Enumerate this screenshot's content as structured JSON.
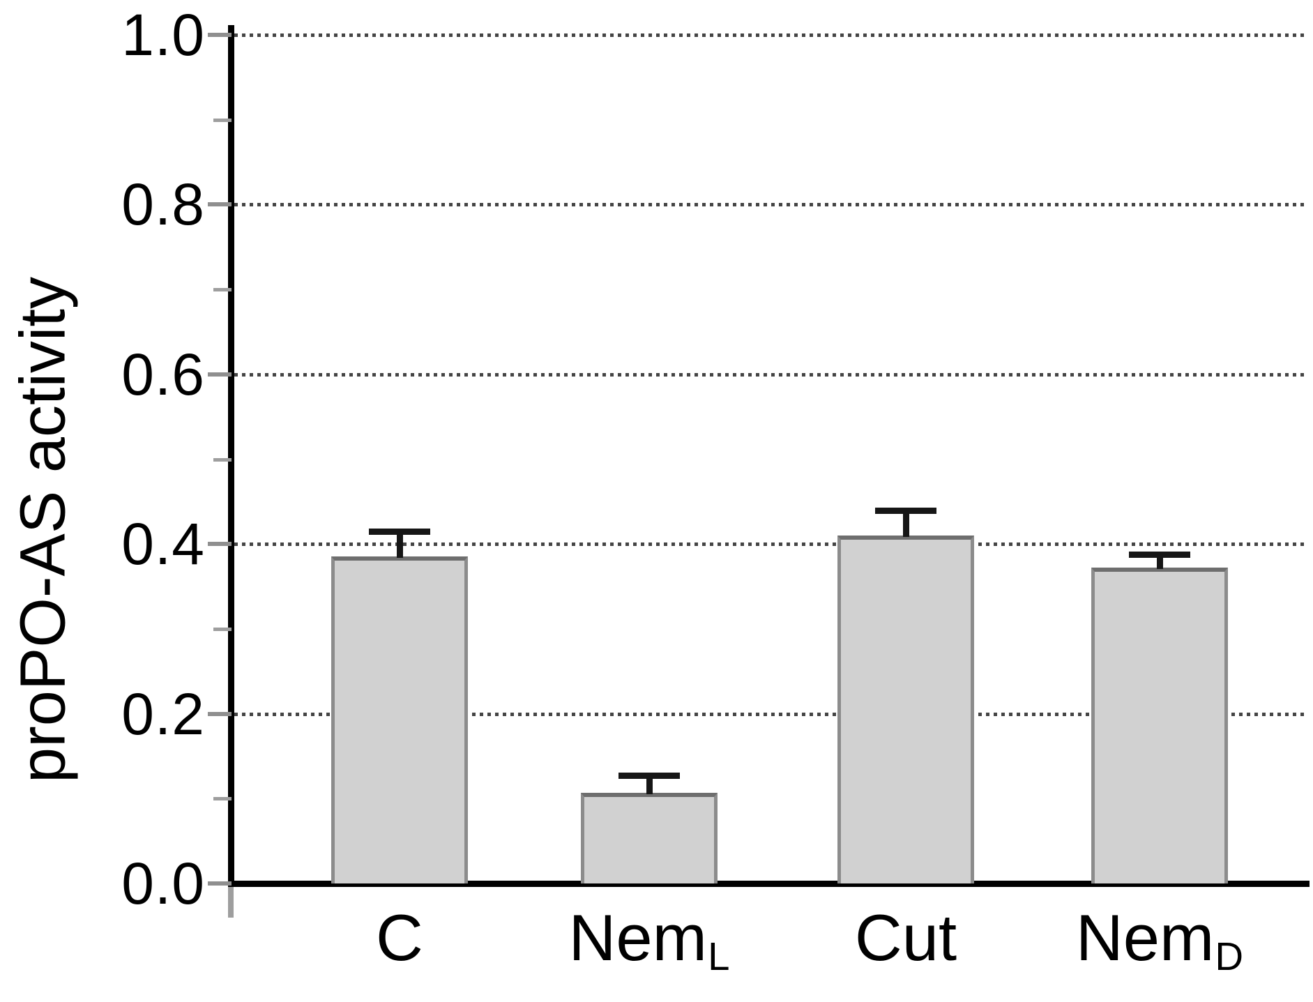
{
  "chart_data": {
    "type": "bar",
    "title": "",
    "xlabel": "",
    "ylabel": "proPO-AS activity",
    "categories": [
      "C",
      "NemL",
      "Cut",
      "NemD"
    ],
    "category_labels": [
      {
        "base": "C",
        "subscript": ""
      },
      {
        "base": "Nem",
        "subscript": "L"
      },
      {
        "base": "Cut",
        "subscript": ""
      },
      {
        "base": "Nem",
        "subscript": "D"
      }
    ],
    "series": [
      {
        "name": "proPO-AS activity",
        "values": [
          0.385,
          0.107,
          0.41,
          0.372
        ],
        "errors_upper": [
          0.03,
          0.02,
          0.03,
          0.016
        ]
      }
    ],
    "ylim": [
      0.0,
      1.0
    ],
    "yticks": [
      0.0,
      0.2,
      0.4,
      0.6,
      0.8,
      1.0
    ],
    "ytick_labels": [
      "0.0",
      "0.2",
      "0.4",
      "0.6",
      "0.8",
      "1.0"
    ],
    "yticks_minor": [
      0.1,
      0.3,
      0.5,
      0.7,
      0.9
    ],
    "grid": "horizontal dotted gridlines at major y ticks",
    "legend": "none",
    "colors": {
      "bar_fill": "#d1d1d1",
      "bar_border": "#8c8c8c",
      "bar_border_top": "#6e6e6e",
      "error_bar": "#161616",
      "gridline": "#454545",
      "tick": "#8f8f8f",
      "axis": "#000000",
      "text": "#000000",
      "background": "#ffffff"
    }
  }
}
